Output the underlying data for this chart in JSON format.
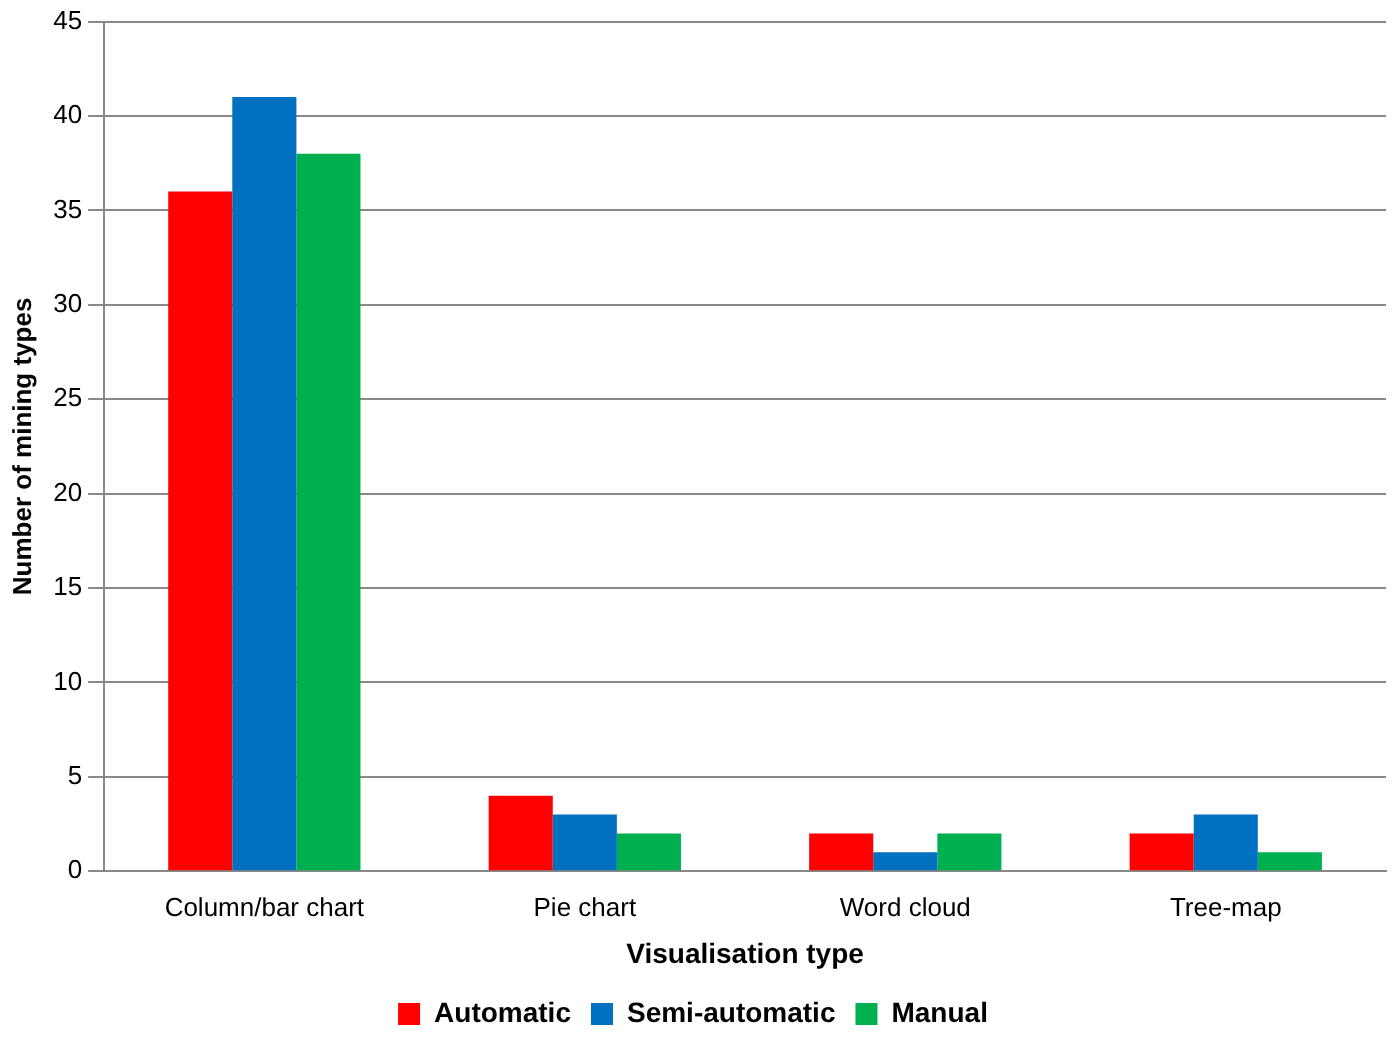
{
  "chart_data": {
    "type": "bar",
    "xlabel": "Visualisation type",
    "ylabel": "Number of mining types",
    "categories": [
      "Column/bar chart",
      "Pie chart",
      "Word cloud",
      "Tree-map"
    ],
    "series": [
      {
        "name": "Automatic",
        "color": "#ff0000",
        "values": [
          36,
          4,
          2,
          2
        ]
      },
      {
        "name": "Semi-automatic",
        "color": "#0070c0",
        "values": [
          41,
          3,
          1,
          3
        ]
      },
      {
        "name": "Manual",
        "color": "#00b050",
        "values": [
          38,
          2,
          2,
          1
        ]
      }
    ],
    "ylim": [
      0,
      45
    ],
    "yticks": [
      0,
      5,
      10,
      15,
      20,
      25,
      30,
      35,
      40,
      45
    ],
    "grid": "y",
    "legend": "bottom"
  }
}
